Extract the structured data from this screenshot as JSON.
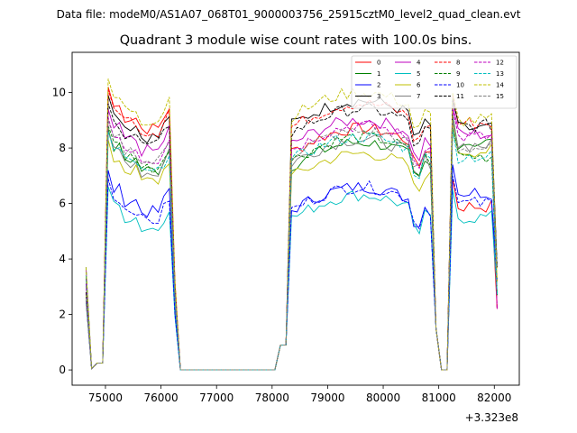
{
  "header": "Data file: modeM0/AS1A07_068T01_9000003756_25915cztM0_level2_quad_clean.evt",
  "chart_data": {
    "type": "line",
    "title": "Quadrant 3 module wise count rates with 100.0s bins.",
    "xlabel": "",
    "ylabel": "",
    "x_offset_label": "+3.323e8",
    "xlim": [
      74400,
      82450
    ],
    "ylim": [
      -0.55,
      11.45
    ],
    "xticks": [
      75000,
      76000,
      77000,
      78000,
      79000,
      80000,
      81000,
      82000
    ],
    "xtick_labels": [
      "75000",
      "76000",
      "77000",
      "78000",
      "79000",
      "80000",
      "81000",
      "82000"
    ],
    "yticks": [
      0,
      2,
      4,
      6,
      8,
      10
    ],
    "ytick_labels": [
      "0",
      "2",
      "4",
      "6",
      "8",
      "10"
    ],
    "legend_position": "top-right",
    "time_bins_note": "x values are seconds offset from 3.323e8; segment1 75000-76300, gap, segment2 78200-80950, dip near 81000, segment3 81300-82050",
    "series": [
      {
        "name": "0",
        "color": "#ff0000",
        "dash": false,
        "base": [
          9.1,
          8.3,
          5.9
        ]
      },
      {
        "name": "1",
        "color": "#008000",
        "dash": false,
        "base": [
          7.6,
          7.8,
          8.2
        ]
      },
      {
        "name": "2",
        "color": "#0000ff",
        "dash": false,
        "base": [
          6.1,
          6.2,
          6.4
        ]
      },
      {
        "name": "3",
        "color": "#000000",
        "dash": false,
        "base": [
          8.8,
          9.3,
          8.7
        ]
      },
      {
        "name": "4",
        "color": "#bf00bf",
        "dash": false,
        "base": [
          8.3,
          8.6,
          8.5
        ]
      },
      {
        "name": "5",
        "color": "#00bfbf",
        "dash": false,
        "base": [
          5.5,
          5.9,
          5.5
        ]
      },
      {
        "name": "6",
        "color": "#bfbf00",
        "dash": false,
        "base": [
          7.2,
          7.4,
          7.9
        ]
      },
      {
        "name": "7",
        "color": "#808080",
        "dash": false,
        "base": [
          7.5,
          7.9,
          8.1
        ]
      },
      {
        "name": "8",
        "color": "#ff0000",
        "dash": true,
        "base": [
          9.0,
          9.2,
          8.9
        ]
      },
      {
        "name": "9",
        "color": "#008000",
        "dash": true,
        "base": [
          7.7,
          8.0,
          7.7
        ]
      },
      {
        "name": "10",
        "color": "#0000ff",
        "dash": true,
        "base": [
          5.8,
          6.2,
          6.0
        ]
      },
      {
        "name": "11",
        "color": "#000000",
        "dash": true,
        "base": [
          8.5,
          9.0,
          8.8
        ]
      },
      {
        "name": "12",
        "color": "#bf00bf",
        "dash": true,
        "base": [
          8.0,
          8.4,
          8.4
        ]
      },
      {
        "name": "13",
        "color": "#00bfbf",
        "dash": true,
        "base": [
          7.5,
          8.0,
          7.7
        ]
      },
      {
        "name": "14",
        "color": "#bfbf00",
        "dash": true,
        "base": [
          9.4,
          9.6,
          9.0
        ]
      },
      {
        "name": "15",
        "color": "#808080",
        "dash": true,
        "base": [
          7.9,
          8.2,
          8.0
        ]
      }
    ]
  }
}
